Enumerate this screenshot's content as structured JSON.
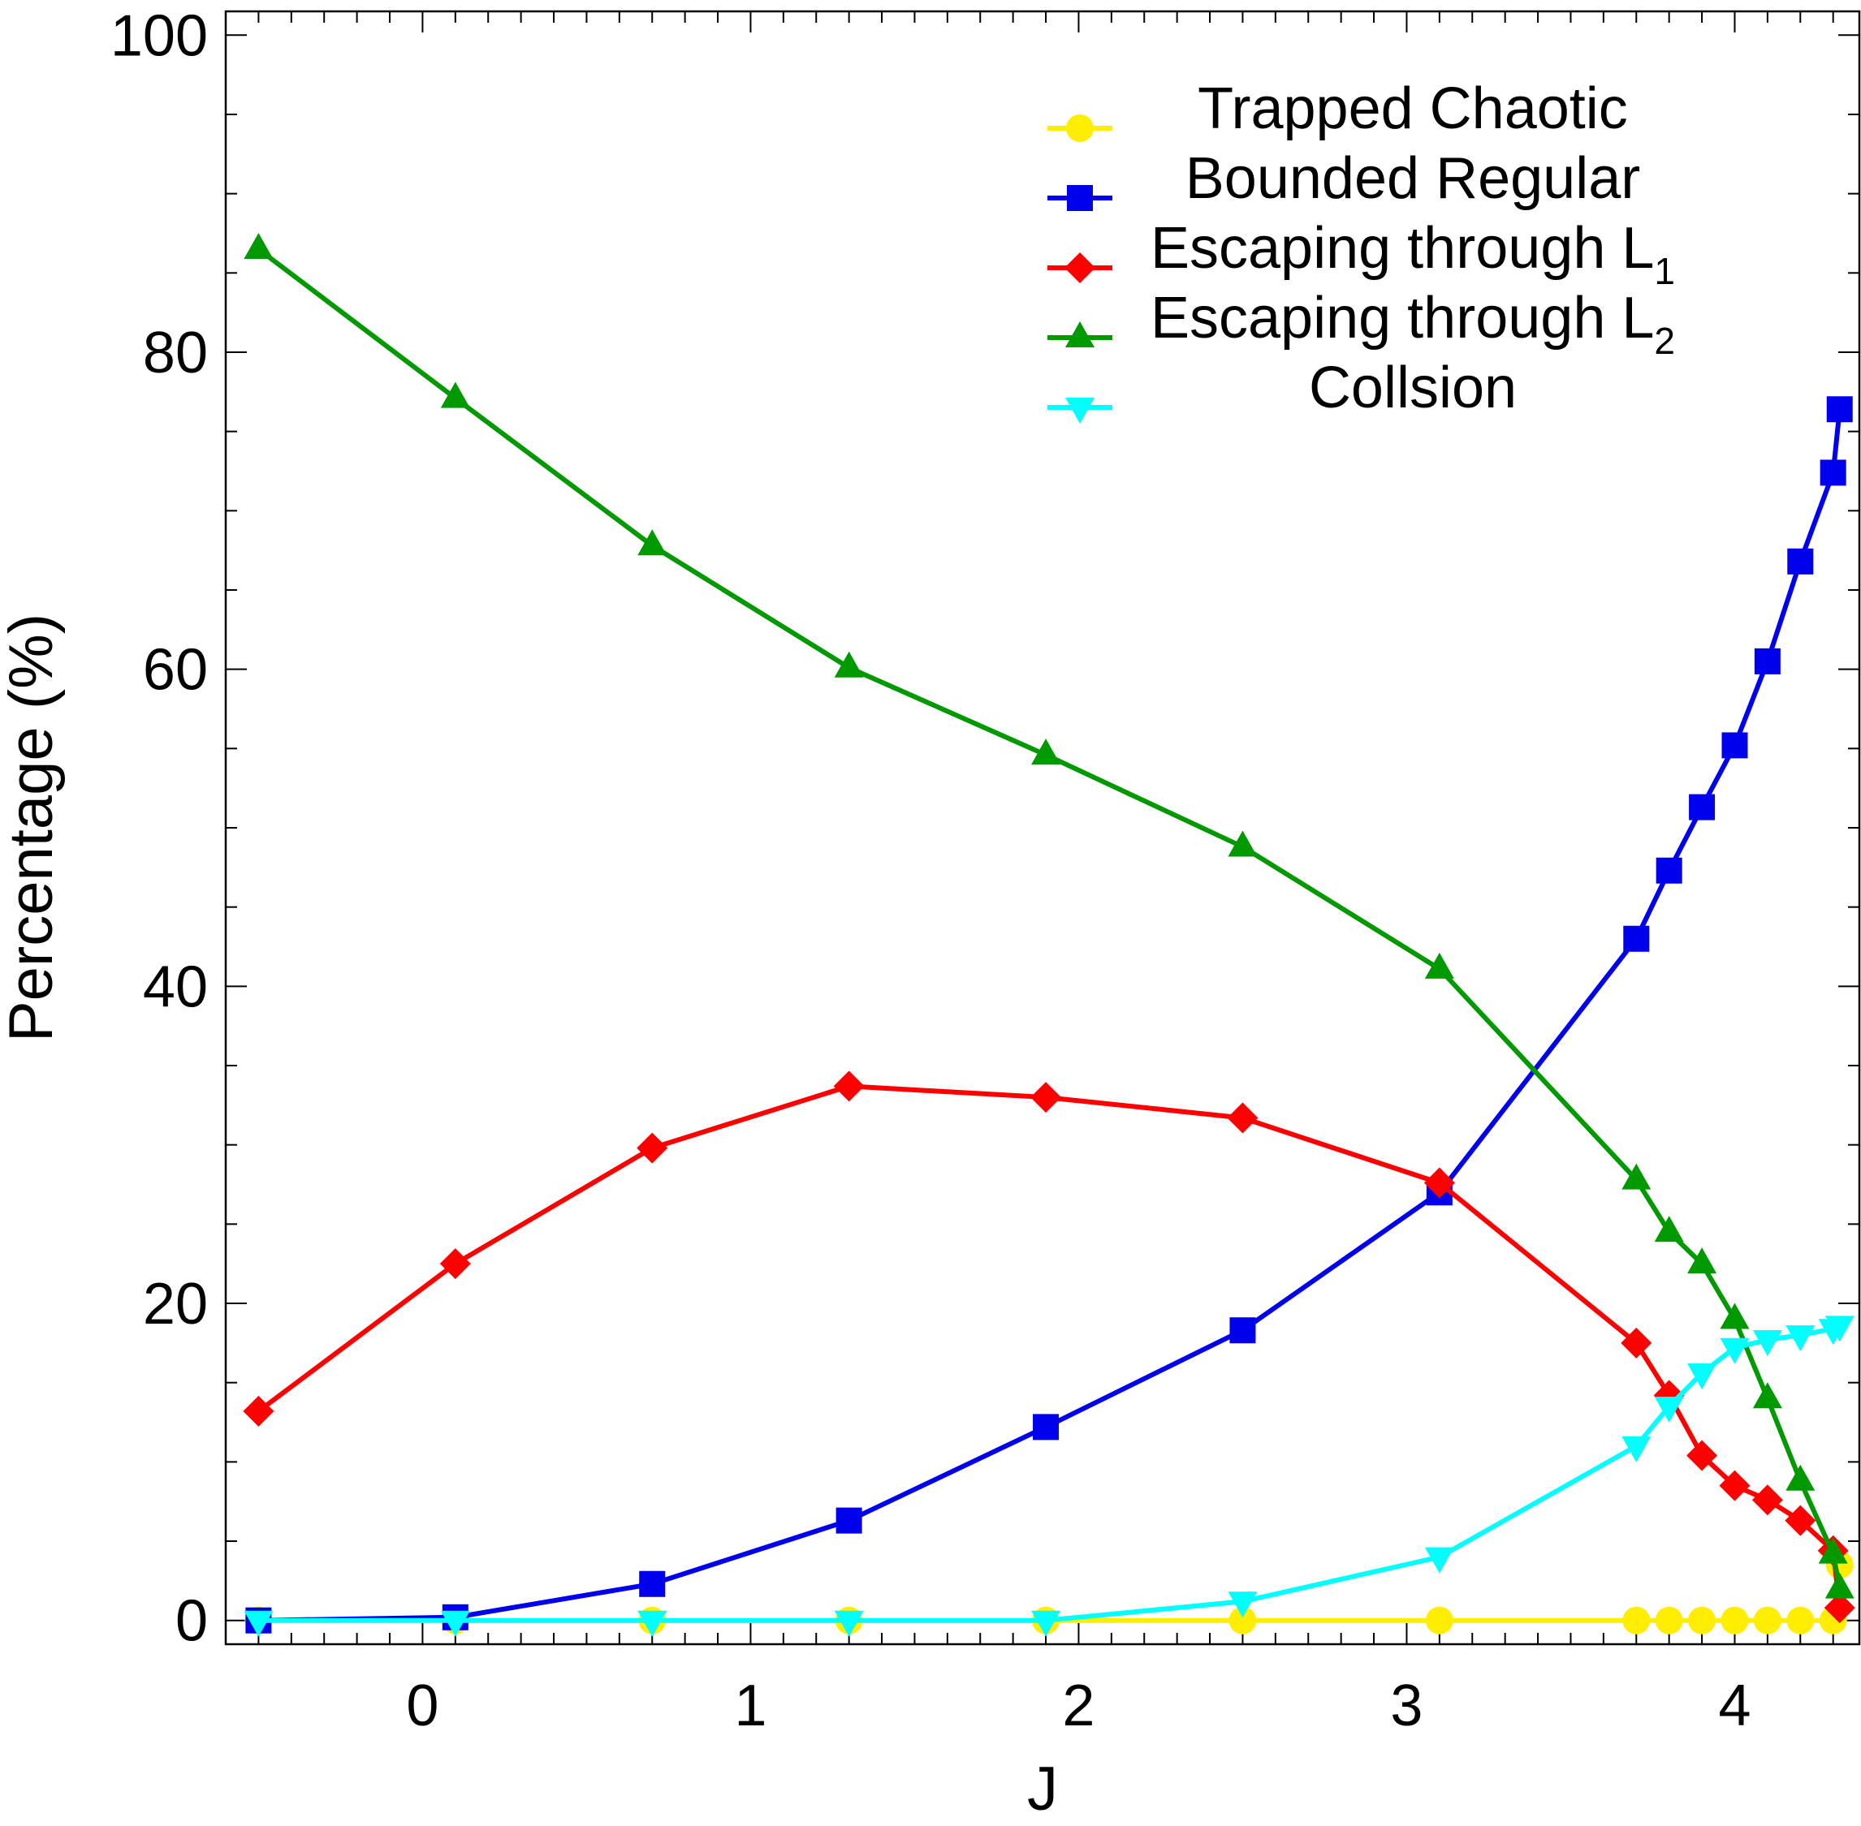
{
  "chart_data": {
    "type": "line",
    "title": "",
    "xlabel": "J",
    "ylabel": "Percentage (%)",
    "xlim": [
      -0.6,
      4.38
    ],
    "ylim": [
      -1.5,
      101.5
    ],
    "x_ticks": [
      0,
      1,
      2,
      3,
      4
    ],
    "y_ticks": [
      0,
      20,
      40,
      60,
      80,
      100
    ],
    "x": [
      -0.5,
      0.1,
      0.7,
      1.3,
      1.9,
      2.5,
      3.1,
      3.7,
      3.8,
      3.9,
      4.0,
      4.1,
      4.2,
      4.3,
      4.32
    ],
    "legend_position": "top-right",
    "series": [
      {
        "name": "Trapped Chaotic",
        "color": "#ffee00",
        "marker": "circle",
        "values": [
          0,
          0,
          0,
          0,
          0,
          0,
          0,
          0,
          0,
          0,
          0,
          0,
          0,
          0,
          3.5
        ]
      },
      {
        "name": "Bounded Regular",
        "color": "#0000ee",
        "marker": "square",
        "values": [
          0,
          0.2,
          2.3,
          6.3,
          12.2,
          18.3,
          27.0,
          43.0,
          47.3,
          51.3,
          55.2,
          60.5,
          66.8,
          72.4,
          76.4
        ]
      },
      {
        "name": "Escaping through L",
        "subscript": "1",
        "color": "#ff0000",
        "marker": "diamond",
        "values": [
          13.2,
          22.5,
          29.8,
          33.7,
          33.0,
          31.7,
          27.6,
          17.5,
          14.2,
          10.4,
          8.5,
          7.6,
          6.3,
          4.4,
          0.8
        ]
      },
      {
        "name": "Escaping through L",
        "subscript": "2",
        "color": "#009900",
        "marker": "triangle-up",
        "values": [
          86.5,
          77.1,
          67.8,
          60.1,
          54.6,
          48.8,
          41.1,
          27.8,
          24.5,
          22.5,
          19.0,
          14.0,
          8.8,
          4.2,
          2.0
        ]
      },
      {
        "name": "Collsion",
        "color": "#00ffff",
        "marker": "triangle-down",
        "values": [
          0,
          0,
          0,
          0,
          0,
          1.2,
          4.0,
          11.0,
          13.5,
          15.6,
          17.2,
          17.7,
          18.0,
          18.4,
          18.6
        ]
      }
    ]
  }
}
